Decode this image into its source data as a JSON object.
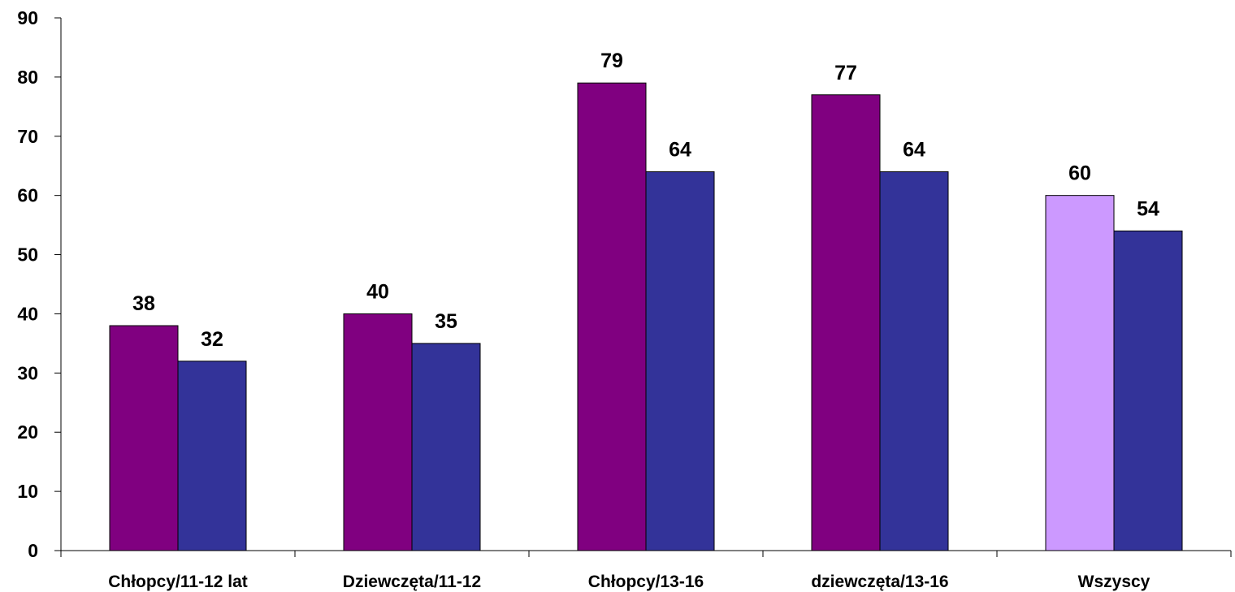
{
  "chart_data": {
    "type": "bar",
    "categories": [
      "Chłopcy/11-12 lat",
      "Dziewczęta/11-12",
      "Chłopcy/13-16",
      "dziewczęta/13-16",
      "Wszyscy"
    ],
    "series": [
      {
        "values": [
          38,
          40,
          79,
          77,
          60
        ],
        "color": "#800080",
        "point_colors": [
          "#800080",
          "#800080",
          "#800080",
          "#800080",
          "#CC99FF"
        ]
      },
      {
        "values": [
          32,
          35,
          64,
          64,
          54
        ],
        "color": "#333399"
      }
    ],
    "title": "",
    "xlabel": "",
    "ylabel": "",
    "ylim": [
      0,
      90
    ],
    "yticks": [
      0,
      10,
      20,
      30,
      40,
      50,
      60,
      70,
      80,
      90
    ],
    "grid": false,
    "legend": "none",
    "data_labels": true
  }
}
